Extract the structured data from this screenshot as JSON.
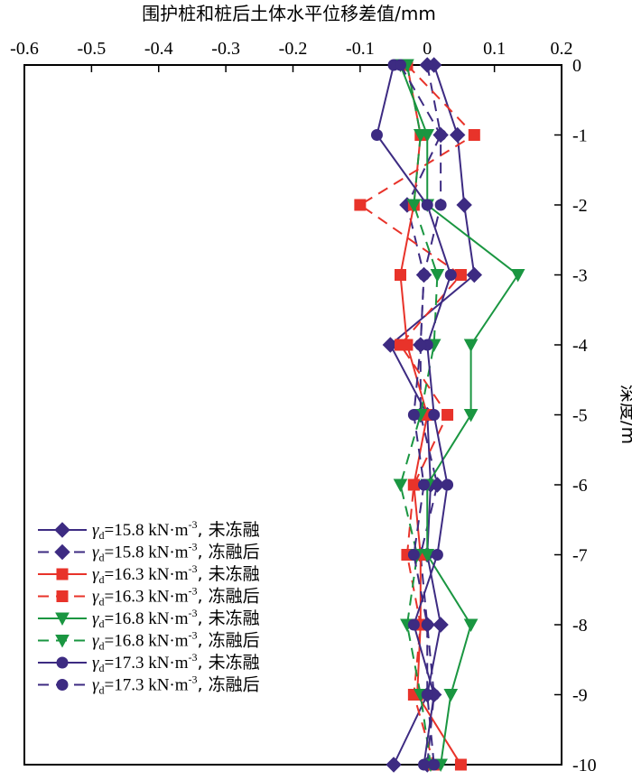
{
  "chart_data": {
    "type": "line",
    "title": "围护桩和桩后土体水平位移差值/mm",
    "xlabel": "围护桩和桩后土体水平位移差值/mm",
    "ylabel": "深度/m",
    "xlim": [
      -0.6,
      0.2
    ],
    "ylim": [
      -10,
      0
    ],
    "x_ticks": [
      "-0.6",
      "-0.5",
      "-0.4",
      "-0.3",
      "-0.2",
      "-0.1",
      "0",
      "0.1",
      "0.2"
    ],
    "y_ticks": [
      "0",
      "-1",
      "-2",
      "-3",
      "-4",
      "-5",
      "-6",
      "-7",
      "-8",
      "-9",
      "-10"
    ],
    "x_axis_position": "top",
    "y_axis_position": "right",
    "legend_position": "bottom-left",
    "grid": false,
    "depths": [
      0,
      -1,
      -2,
      -3,
      -4,
      -5,
      -6,
      -7,
      -8,
      -9,
      -10
    ],
    "series": [
      {
        "name": "γd=15.8 kN·m-3, 未冻融",
        "sym": "γ",
        "sub": "d",
        "rest": "=15.8 kN·m",
        "sup": "-3",
        "suffix": ", 未冻融",
        "color": "#3d2b82",
        "marker": "diamond",
        "dashed": false,
        "values": [
          0.01,
          0.045,
          0.055,
          0.07,
          -0.055,
          0.0,
          0.005,
          0.0,
          0.02,
          0.0,
          -0.05
        ]
      },
      {
        "name": "γd=15.8 kN·m-3, 冻融后",
        "sym": "γ",
        "sub": "d",
        "rest": "=15.8 kN·m",
        "sup": "-3",
        "suffix": ", 冻融后",
        "color": "#3d2b82",
        "marker": "diamond",
        "dashed": true,
        "values": [
          0.0,
          0.02,
          -0.03,
          -0.005,
          -0.01,
          -0.01,
          0.015,
          -0.01,
          0.0,
          0.01,
          0.0
        ]
      },
      {
        "name": "γd=16.3 kN·m-3, 未冻融",
        "sym": "γ",
        "sub": "d",
        "rest": "=16.3 kN·m",
        "sup": "-3",
        "suffix": ", 未冻融",
        "color": "#e8332a",
        "marker": "square",
        "dashed": false,
        "values": [
          -0.03,
          -0.01,
          -0.02,
          -0.04,
          -0.03,
          0.0,
          -0.02,
          -0.01,
          -0.01,
          -0.015,
          0.05
        ]
      },
      {
        "name": "γd=16.3 kN·m-3, 冻融后",
        "sym": "γ",
        "sub": "d",
        "rest": "=16.3 kN·m",
        "sup": "-3",
        "suffix": ", 冻融后",
        "color": "#e8332a",
        "marker": "square",
        "dashed": true,
        "values": [
          -0.03,
          0.07,
          -0.1,
          0.05,
          -0.04,
          0.03,
          -0.02,
          -0.03,
          -0.01,
          -0.02,
          0.01
        ]
      },
      {
        "name": "γd=16.8 kN·m-3, 未冻融",
        "sym": "γ",
        "sub": "d",
        "rest": "=16.8 kN·m",
        "sup": "-3",
        "suffix": ", 未冻融",
        "color": "#1a9641",
        "marker": "triangle-down",
        "dashed": false,
        "values": [
          -0.04,
          0.0,
          0.0,
          0.135,
          0.065,
          0.065,
          0.0,
          0.0,
          0.065,
          0.035,
          0.02
        ]
      },
      {
        "name": "γd=16.8 kN·m-3, 冻融后",
        "sym": "γ",
        "sub": "d",
        "rest": "=16.8 kN·m",
        "sup": "-3",
        "suffix": ", 冻融后",
        "color": "#1a9641",
        "marker": "triangle-down",
        "dashed": true,
        "values": [
          -0.03,
          -0.01,
          -0.02,
          0.015,
          0.01,
          -0.01,
          -0.04,
          -0.015,
          -0.03,
          -0.01,
          0.005
        ]
      },
      {
        "name": "γd=17.3 kN·m-3, 未冻融",
        "sym": "γ",
        "sub": "d",
        "rest": "=17.3 kN·m",
        "sup": "-3",
        "suffix": ", 未冻融",
        "color": "#3d2b82",
        "marker": "circle",
        "dashed": false,
        "values": [
          -0.05,
          -0.075,
          0.0,
          0.035,
          0.0,
          0.01,
          0.03,
          0.015,
          -0.02,
          0.01,
          -0.005
        ]
      },
      {
        "name": "γd=17.3 kN·m-3, 冻融后",
        "sym": "γ",
        "sub": "d",
        "rest": "=17.3 kN·m",
        "sup": "-3",
        "suffix": ", 冻融后",
        "color": "#3d2b82",
        "marker": "circle",
        "dashed": true,
        "values": [
          -0.04,
          0.02,
          0.02,
          -0.005,
          -0.01,
          -0.02,
          -0.005,
          -0.02,
          0.0,
          0.0,
          0.01
        ]
      }
    ]
  }
}
